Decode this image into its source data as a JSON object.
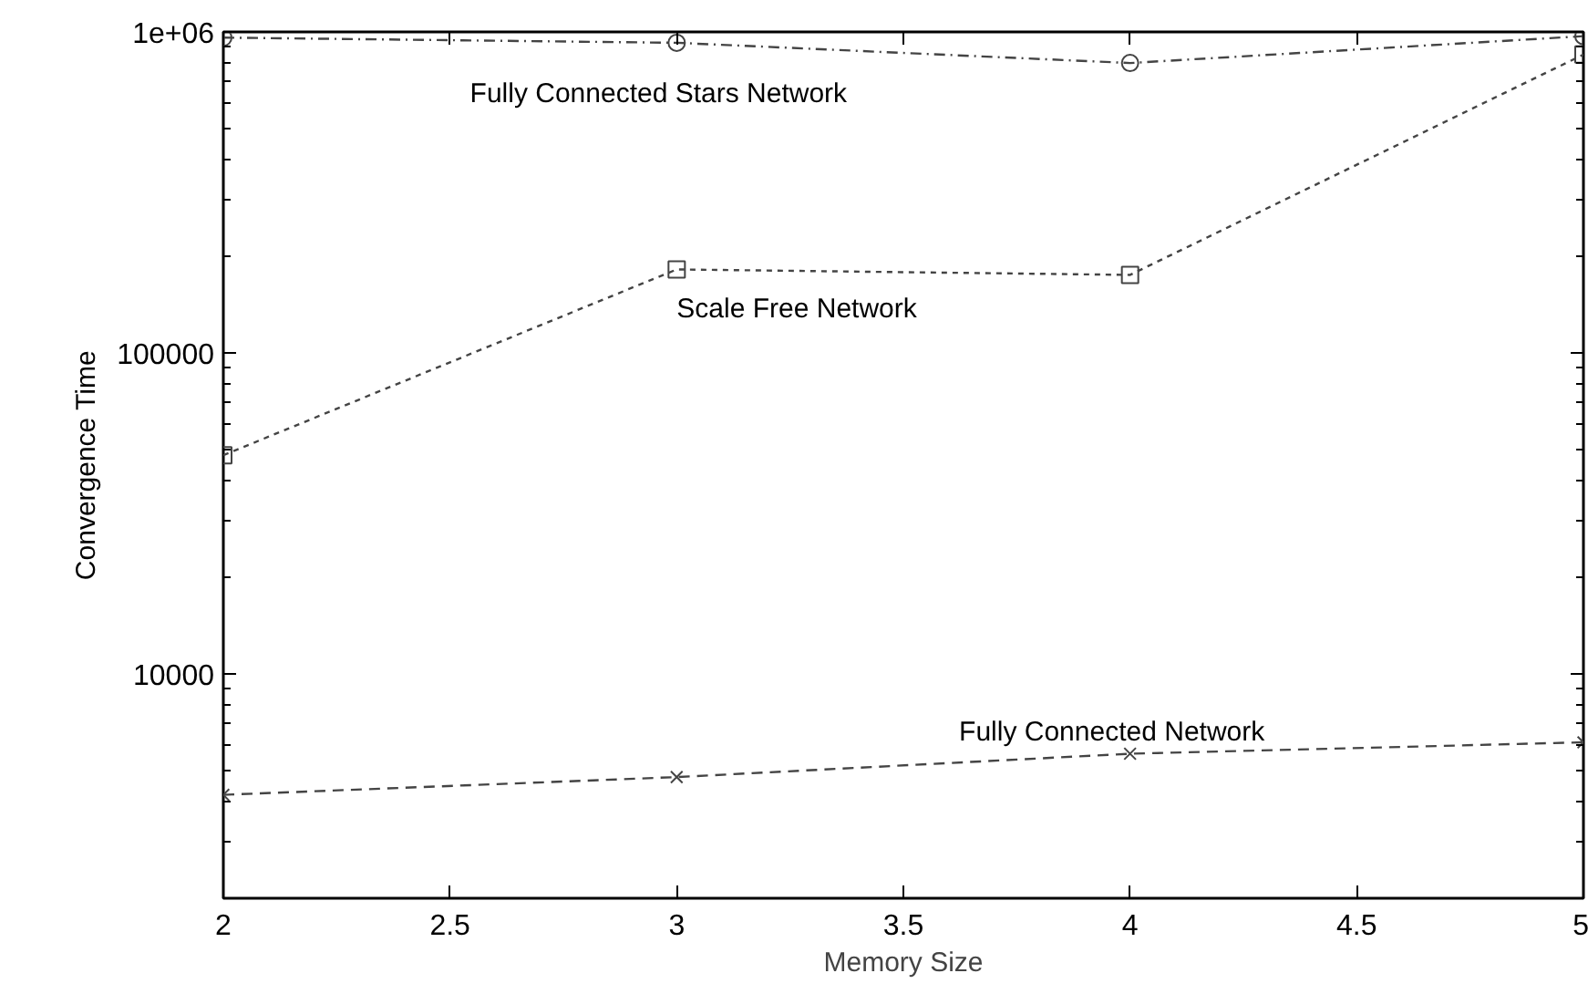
{
  "chart_data": {
    "type": "line",
    "xlabel": "Memory Size",
    "ylabel": "Convergence Time",
    "x": [
      2,
      3,
      4,
      5
    ],
    "series": [
      {
        "name": "Fully Connected Stars Network",
        "color": "#444444",
        "marker": "circle",
        "line_style": "dashdot",
        "values": [
          960000,
          925000,
          800000,
          970000
        ]
      },
      {
        "name": "Scale Free Network",
        "color": "#444444",
        "marker": "square",
        "line_style": "dotted",
        "values": [
          48000,
          182000,
          175000,
          850000
        ]
      },
      {
        "name": "Fully Connected Network",
        "color": "#444444",
        "marker": "cross",
        "line_style": "dashed",
        "values": [
          4200,
          4770,
          5640,
          6120
        ]
      }
    ],
    "log": "y",
    "xlim": [
      2,
      5
    ],
    "ylim": [
      2000,
      1000000
    ],
    "xticks": [
      2,
      2.5,
      3,
      3.5,
      4,
      4.5,
      5
    ],
    "yticks": [
      {
        "value": 2000,
        "label": null
      },
      {
        "value": 3000,
        "label": null
      },
      {
        "value": 4000,
        "label": null
      },
      {
        "value": 5000,
        "label": null
      },
      {
        "value": 6000,
        "label": null
      },
      {
        "value": 7000,
        "label": null
      },
      {
        "value": 8000,
        "label": null
      },
      {
        "value": 9000,
        "label": null
      },
      10000,
      {
        "value": 20000,
        "label": null
      },
      {
        "value": 30000,
        "label": null
      },
      {
        "value": 40000,
        "label": null
      },
      {
        "value": 50000,
        "label": null
      },
      {
        "value": 60000,
        "label": null
      },
      {
        "value": 70000,
        "label": null
      },
      {
        "value": 80000,
        "label": null
      },
      {
        "value": 90000,
        "label": null
      },
      100000,
      {
        "value": 200000,
        "label": null
      },
      {
        "value": 300000,
        "label": null
      },
      {
        "value": 400000,
        "label": null
      },
      {
        "value": 500000,
        "label": null
      },
      {
        "value": 600000,
        "label": null
      },
      {
        "value": 700000,
        "label": null
      },
      {
        "value": 800000,
        "label": null
      },
      {
        "value": 900000,
        "label": null
      },
      {
        "value": 1000000,
        "label": "1e+06"
      }
    ],
    "grid": false
  }
}
